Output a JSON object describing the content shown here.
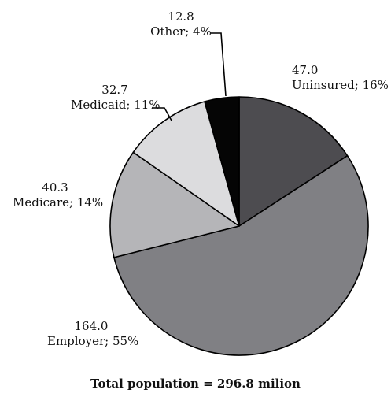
{
  "chart_data": {
    "type": "pie",
    "caption": "Total population = 296.8 milion",
    "slices": [
      {
        "name": "Uninsured",
        "value": 47.0,
        "value_label": "47.0",
        "label": "Uninsured; 16%",
        "color": "#4d4c50"
      },
      {
        "name": "Employer",
        "value": 164.0,
        "value_label": "164.0",
        "label": "Employer; 55%",
        "color": "#808084"
      },
      {
        "name": "Medicare",
        "value": 40.3,
        "value_label": "40.3",
        "label": "Medicare; 14%",
        "color": "#b5b5b8"
      },
      {
        "name": "Medicaid",
        "value": 32.7,
        "value_label": "32.7",
        "label": "Medicaid; 11%",
        "color": "#dcdcde"
      },
      {
        "name": "Other",
        "value": 12.8,
        "value_label": "12.8",
        "label": "Other; 4%",
        "color": "#050505"
      }
    ]
  }
}
